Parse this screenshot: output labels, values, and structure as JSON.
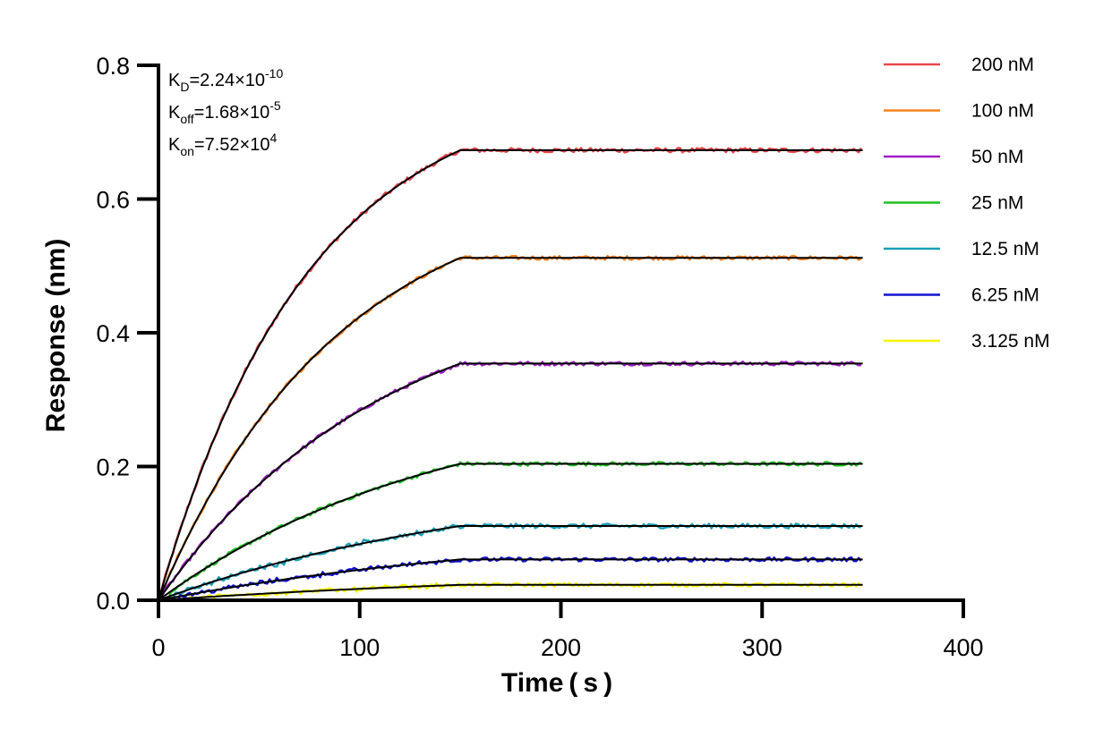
{
  "chart_data": {
    "type": "line",
    "xlabel": "Time ( s )",
    "ylabel": "Response (nm)",
    "xlim": [
      0,
      400
    ],
    "ylim": [
      0,
      0.8
    ],
    "xticks": [
      "0",
      "100",
      "200",
      "300",
      "400"
    ],
    "yticks": [
      "0.0",
      "0.2",
      "0.4",
      "0.6",
      "0.8"
    ],
    "grid": false,
    "legend_position": "right",
    "association_end_time": 150,
    "end_time": 350,
    "parameters": [
      {
        "base": "K",
        "sub": "D",
        "eq": "=2.24×10",
        "sup": "-10"
      },
      {
        "base": "K",
        "sub": "off",
        "eq": "=1.68×10",
        "sup": "-5"
      },
      {
        "base": "K",
        "sub": "on",
        "eq": "=7.52×10",
        "sup": "4"
      }
    ],
    "fit_color": "#000000",
    "series": [
      {
        "name": "200 nM",
        "color": "#e8474c",
        "plateau": 0.673
      },
      {
        "name": "100 nM",
        "color": "#f5821f",
        "plateau": 0.512
      },
      {
        "name": "50 nM",
        "color": "#a020c8",
        "plateau": 0.354
      },
      {
        "name": "25 nM",
        "color": "#1fc01f",
        "plateau": 0.204
      },
      {
        "name": "12.5 nM",
        "color": "#1a9fb8",
        "plateau": 0.111
      },
      {
        "name": "6.25 nM",
        "color": "#1010d0",
        "plateau": 0.061
      },
      {
        "name": "3.125 nM",
        "color": "#f5f500",
        "plateau": 0.023
      }
    ]
  }
}
